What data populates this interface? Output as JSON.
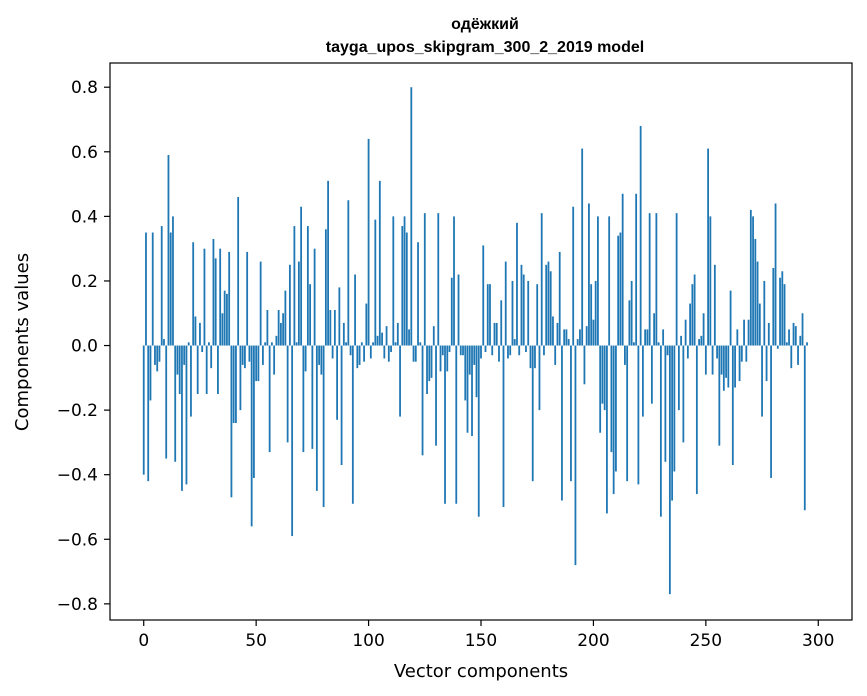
{
  "chart_data": {
    "type": "bar",
    "title": "одёжкий",
    "subtitle": "tayga_upos_skipgram_300_2_2019 model",
    "xlabel": "Vector components",
    "ylabel": "Components values",
    "xlim": [
      -15,
      315
    ],
    "ylim": [
      -0.85,
      0.875
    ],
    "xticks": [
      0,
      50,
      100,
      150,
      200,
      250,
      300
    ],
    "yticks": [
      -0.8,
      -0.6,
      -0.4,
      -0.2,
      0.0,
      0.2,
      0.4,
      0.6,
      0.8
    ],
    "ytick_labels": [
      "−0.8",
      "−0.6",
      "−0.4",
      "−0.2",
      "0.0",
      "0.2",
      "0.4",
      "0.6",
      "0.8"
    ],
    "grid": false,
    "bar_color": "#1f77b4",
    "series": [
      {
        "values": [
          -0.4,
          0.35,
          -0.42,
          -0.17,
          0.35,
          -0.06,
          -0.08,
          -0.05,
          0.37,
          0.02,
          -0.35,
          0.59,
          0.35,
          0.4,
          -0.36,
          -0.09,
          -0.15,
          -0.45,
          -0.06,
          -0.43,
          0.01,
          -0.22,
          0.32,
          0.09,
          -0.15,
          0.07,
          -0.02,
          0.3,
          -0.15,
          0.01,
          -0.07,
          0.33,
          0.27,
          -0.15,
          0.3,
          0.1,
          0.17,
          0.16,
          0.29,
          -0.47,
          -0.24,
          -0.24,
          0.46,
          -0.2,
          -0.06,
          -0.07,
          0.29,
          -0.05,
          -0.56,
          -0.41,
          -0.11,
          -0.11,
          0.26,
          -0.06,
          0.01,
          0.11,
          -0.33,
          0.01,
          -0.09,
          0.03,
          0.11,
          0.07,
          0.1,
          0.17,
          -0.3,
          0.25,
          -0.59,
          0.37,
          0.01,
          0.26,
          0.43,
          -0.33,
          -0.08,
          0.37,
          0.19,
          -0.32,
          0.3,
          -0.45,
          -0.06,
          -0.09,
          -0.5,
          0.36,
          0.51,
          0.11,
          -0.04,
          0.11,
          -0.23,
          0.18,
          -0.37,
          0.07,
          0.01,
          0.45,
          -0.03,
          -0.49,
          0.22,
          -0.07,
          -0.06,
          0.01,
          -0.05,
          0.13,
          0.64,
          -0.04,
          0.01,
          0.39,
          0.03,
          0.51,
          0.04,
          -0.04,
          0.06,
          -0.05,
          -0.02,
          0.4,
          0.01,
          0.07,
          -0.22,
          0.37,
          0.4,
          0.35,
          0.05,
          0.8,
          -0.05,
          -0.05,
          0.32,
          0.01,
          -0.34,
          0.41,
          -0.15,
          -0.11,
          -0.1,
          0.06,
          -0.31,
          0.41,
          -0.08,
          -0.03,
          -0.49,
          -0.08,
          -0.02,
          0.21,
          0.4,
          -0.49,
          0.22,
          -0.03,
          -0.03,
          -0.17,
          -0.27,
          -0.09,
          -0.28,
          -0.06,
          -0.16,
          -0.53,
          -0.04,
          0.31,
          -0.02,
          0.19,
          0.19,
          -0.03,
          0.07,
          0.07,
          -0.05,
          0.14,
          -0.5,
          0.26,
          -0.04,
          -0.03,
          0.2,
          0.02,
          0.38,
          -0.03,
          0.25,
          0.22,
          -0.02,
          0.2,
          -0.07,
          -0.42,
          -0.07,
          0.19,
          -0.2,
          0.41,
          -0.03,
          0.25,
          0.26,
          0.23,
          0.09,
          -0.06,
          0.07,
          0.29,
          -0.48,
          0.05,
          0.05,
          0.02,
          -0.42,
          0.43,
          -0.68,
          0.02,
          0.05,
          0.61,
          -0.12,
          0.06,
          0.44,
          0.19,
          0.08,
          0.2,
          0.4,
          -0.27,
          -0.18,
          -0.2,
          -0.52,
          0.4,
          -0.33,
          -0.46,
          -0.39,
          0.34,
          0.35,
          0.47,
          -0.06,
          -0.42,
          0.14,
          0.2,
          0.01,
          0.47,
          -0.43,
          0.68,
          -0.22,
          0.05,
          0.05,
          0.41,
          -0.18,
          0.1,
          0.41,
          0.01,
          -0.53,
          0.05,
          -0.36,
          -0.03,
          -0.77,
          -0.48,
          -0.39,
          0.41,
          -0.2,
          0.03,
          -0.3,
          0.08,
          -0.04,
          0.13,
          0.19,
          0.22,
          -0.46,
          0.02,
          0.03,
          0.1,
          -0.09,
          0.61,
          0.4,
          -0.09,
          0.25,
          -0.04,
          -0.31,
          -0.09,
          -0.14,
          -0.1,
          -0.13,
          0.17,
          -0.37,
          -0.13,
          0.05,
          -0.11,
          -0.05,
          0.08,
          -0.05,
          0.08,
          0.42,
          0.4,
          0.33,
          0.26,
          0.13,
          -0.22,
          0.2,
          -0.11,
          0.07,
          -0.41,
          0.24,
          0.44,
          -0.01,
          0.21,
          0.23,
          0.19,
          0.01,
          0.05,
          -0.07,
          0.07,
          0.06,
          -0.06,
          0.03,
          0.1,
          -0.51,
          0.01
        ]
      }
    ]
  }
}
